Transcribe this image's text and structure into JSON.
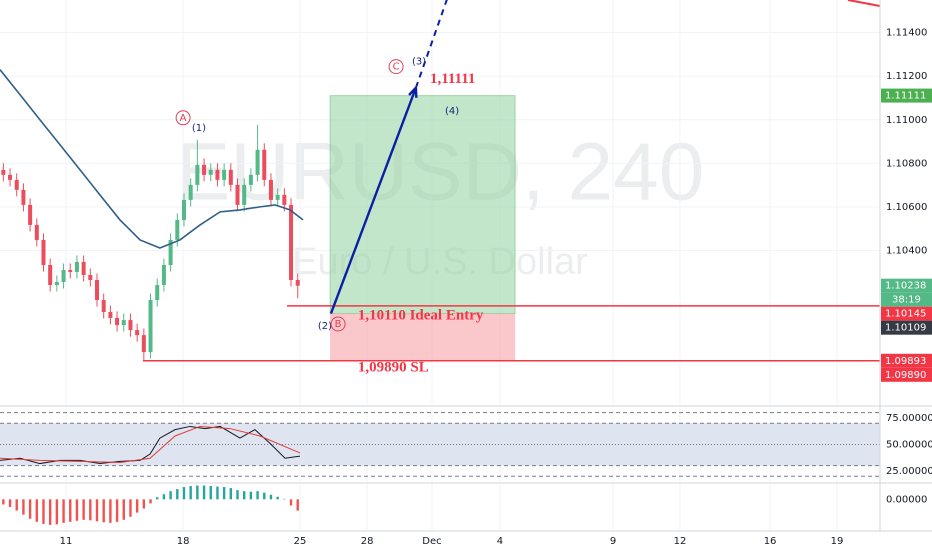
{
  "chart_data": [
    {
      "type": "candlestick",
      "title": "EURUSD, 240",
      "subtitle": "Euro / U.S. Dollar",
      "up_color": "#53b987",
      "down_color": "#eb4d5c",
      "x": [
        0.15,
        0.45,
        0.75,
        1.05,
        1.35,
        1.65,
        1.95,
        2.25,
        2.55,
        2.85,
        3.15,
        3.45,
        3.75,
        4.05,
        4.35,
        4.65,
        4.95,
        5.25,
        5.55,
        5.85,
        6.15,
        6.45,
        6.75,
        7.05,
        7.35,
        7.65,
        7.95,
        8.25,
        8.55,
        8.85,
        9.15,
        9.45,
        9.75,
        10.05,
        10.35,
        10.65,
        10.95,
        11.25,
        11.55,
        11.85,
        12.15,
        12.45,
        12.75,
        13.05,
        13.35
      ],
      "open": [
        1.1077,
        1.10747,
        1.10724,
        1.10678,
        1.10609,
        1.10517,
        1.10448,
        1.10333,
        1.10241,
        1.10255,
        1.1031,
        1.10301,
        1.10347,
        1.10287,
        1.10264,
        1.10172,
        1.10117,
        1.1009,
        1.10057,
        1.1008,
        1.10034,
        1.10011,
        1.09933,
        1.10172,
        1.10241,
        1.10333,
        1.10448,
        1.1054,
        1.10632,
        1.10701,
        1.10793,
        1.10747,
        1.1077,
        1.10724,
        1.1077,
        1.10701,
        1.10609,
        1.10701,
        1.10747,
        1.10862,
        1.10724,
        1.10632,
        1.10655,
        1.10609,
        1.10264
      ],
      "high": [
        1.108,
        1.10777,
        1.10754,
        1.10708,
        1.10639,
        1.10547,
        1.10478,
        1.10363,
        1.10285,
        1.1034,
        1.1034,
        1.10377,
        1.10377,
        1.10317,
        1.10294,
        1.10202,
        1.10147,
        1.1012,
        1.1011,
        1.1011,
        1.10064,
        1.10041,
        1.10202,
        1.10271,
        1.10363,
        1.10478,
        1.1057,
        1.10662,
        1.10731,
        1.10908,
        1.10823,
        1.108,
        1.108,
        1.108,
        1.108,
        1.10731,
        1.10731,
        1.10777,
        1.10977,
        1.10892,
        1.10754,
        1.10685,
        1.10685,
        1.10639,
        1.10294
      ],
      "low": [
        1.10717,
        1.10694,
        1.10648,
        1.10579,
        1.10487,
        1.10418,
        1.10303,
        1.10211,
        1.10211,
        1.10225,
        1.10271,
        1.10271,
        1.10257,
        1.10234,
        1.10142,
        1.10087,
        1.1006,
        1.10027,
        1.10027,
        1.10004,
        1.09981,
        1.09893,
        1.09903,
        1.10142,
        1.10211,
        1.10303,
        1.10418,
        1.1051,
        1.10602,
        1.10671,
        1.10717,
        1.10717,
        1.10694,
        1.10694,
        1.10671,
        1.10579,
        1.10579,
        1.10671,
        1.10717,
        1.10694,
        1.10602,
        1.10602,
        1.10579,
        1.10234,
        1.1018
      ],
      "close": [
        1.10747,
        1.10724,
        1.10678,
        1.10609,
        1.10517,
        1.10448,
        1.10333,
        1.10241,
        1.10255,
        1.1031,
        1.10301,
        1.10347,
        1.10287,
        1.10264,
        1.10172,
        1.10117,
        1.1009,
        1.10057,
        1.1008,
        1.10034,
        1.10011,
        1.09933,
        1.10172,
        1.10241,
        1.10333,
        1.10448,
        1.1054,
        1.10632,
        1.10701,
        1.10793,
        1.10747,
        1.1077,
        1.10724,
        1.1077,
        1.10701,
        1.10609,
        1.10701,
        1.10747,
        1.10862,
        1.10724,
        1.10632,
        1.10655,
        1.10609,
        1.10264,
        1.10238
      ],
      "moving_average": {
        "color": "#2f5f8a",
        "x": [
          0,
          0.9,
          1.79,
          2.69,
          3.59,
          4.48,
          5.38,
          6.28,
          7.17,
          8.07,
          8.97,
          9.87,
          10.76,
          11.66,
          12.33,
          13.0,
          13.59
        ],
        "values": [
          1.1123,
          1.11115,
          1.11,
          1.10885,
          1.1077,
          1.10655,
          1.1054,
          1.10448,
          1.10411,
          1.10448,
          1.10517,
          1.10577,
          1.10586,
          1.106,
          1.10609,
          1.10586,
          1.1054
        ]
      },
      "xlim": [
        0,
        39.46
      ],
      "ylim": [
        1.0969,
        1.1155
      ],
      "xticks": [
        {
          "value": 2.96,
          "label": "11"
        },
        {
          "value": 8.21,
          "label": "18"
        },
        {
          "value": 13.45,
          "label": "25"
        },
        {
          "value": 16.46,
          "label": "28"
        },
        {
          "value": 19.37,
          "label": "Dec"
        },
        {
          "value": 22.42,
          "label": "4"
        },
        {
          "value": 27.49,
          "label": "9"
        },
        {
          "value": 30.49,
          "label": "12"
        },
        {
          "value": 34.53,
          "label": "16"
        },
        {
          "value": 37.53,
          "label": "19"
        }
      ],
      "yticks": [
        {
          "value": 1.114,
          "label": "1.11400"
        },
        {
          "value": 1.112,
          "label": "1.11200"
        },
        {
          "value": 1.11,
          "label": "1.11000"
        },
        {
          "value": 1.108,
          "label": "1.10800"
        },
        {
          "value": 1.106,
          "label": "1.10600"
        },
        {
          "value": 1.104,
          "label": "1.10400"
        }
      ],
      "grid": true,
      "position": {
        "x": [
          14.8,
          23.1
        ],
        "target": 1.11111,
        "entry": 1.1011,
        "stop": 1.0989,
        "profit_color": "#8fd19e",
        "loss_color": "#f7a1a8"
      },
      "levels": [
        {
          "value": 1.10145,
          "x": 12.87,
          "color": "#f23645"
        },
        {
          "value": 1.09893,
          "x": 6.41,
          "color": "#f23645"
        }
      ],
      "arrow": {
        "color": "#0d1fa3",
        "x": [
          14.84,
          18.65,
          20.04
        ],
        "y": [
          1.1011,
          1.11147,
          1.11552
        ]
      },
      "annotations": [
        {
          "text": "A",
          "x": 8.21,
          "y": 1.11009,
          "color": "#e0405a",
          "circled": true
        },
        {
          "text": "(1)",
          "x": 8.92,
          "y": 1.10963,
          "color": "#1a237e"
        },
        {
          "text": "C",
          "x": 17.76,
          "y": 1.11244,
          "color": "#e0405a",
          "circled": true
        },
        {
          "text": "(3)",
          "x": 18.79,
          "y": 1.11267,
          "color": "#1a237e"
        },
        {
          "text": "(4)",
          "x": 20.27,
          "y": 1.11041,
          "color": "#1a237e"
        },
        {
          "text": "(2)",
          "x": 14.57,
          "y": 1.10053,
          "color": "#1a237e"
        },
        {
          "text": "B",
          "x": 15.16,
          "y": 1.10062,
          "color": "#e0405a",
          "circled": true
        },
        {
          "text": "1,11111",
          "x": 19.28,
          "y": 1.11184,
          "color": "#f23645",
          "big": true
        },
        {
          "text": "1,10110 Ideal Entry",
          "x": 16.05,
          "y": 1.10099,
          "color": "#f23645",
          "big": true
        },
        {
          "text": "1,09890 SL",
          "x": 16.05,
          "y": 1.0986,
          "color": "#f23645",
          "big": true
        }
      ],
      "price_labels": [
        {
          "value": 1.11111,
          "label": "1.11111",
          "color": "#4caf50"
        },
        {
          "value": 1.10238,
          "label": "1.10238",
          "color": "#53b987",
          "countdown": "38:19"
        },
        {
          "value": 1.10145,
          "label": "1.10145",
          "color": "#f23645"
        },
        {
          "value": 1.10109,
          "label": "1.10109",
          "color": "#363a45"
        },
        {
          "value": 1.09893,
          "label": "1.09893",
          "color": "#f23645"
        },
        {
          "value": 1.0989,
          "label": "1.09890",
          "color": "#f23645"
        }
      ]
    },
    {
      "type": "line",
      "ylim": [
        14.6,
        84.4
      ],
      "yticks": [
        {
          "value": 75,
          "label": "75.00000"
        },
        {
          "value": 50,
          "label": "50.00000"
        },
        {
          "value": 25,
          "label": "25.00000"
        }
      ],
      "levels": [
        80,
        70,
        50,
        30,
        20
      ],
      "band": [
        30,
        70
      ],
      "band_color": "#dfe4f1",
      "series": [
        {
          "color": "#131722",
          "x": [
            0,
            0.9,
            1.79,
            2.69,
            3.59,
            4.48,
            5.38,
            6.28,
            6.73,
            7.17,
            7.85,
            8.52,
            9.19,
            9.87,
            10.76,
            11.43,
            12.11,
            12.78,
            13.45
          ],
          "values": [
            35,
            37,
            32,
            35,
            35,
            32,
            34,
            35,
            41,
            56,
            64,
            67,
            65,
            67,
            56,
            64,
            51,
            37,
            39
          ]
        },
        {
          "color": "#e53935",
          "x": [
            0,
            1.79,
            3.59,
            5.38,
            6.73,
            7.85,
            8.97,
            10.31,
            11.66,
            13.0,
            13.45
          ],
          "values": [
            37,
            35,
            34,
            33,
            37,
            58,
            67,
            65,
            58,
            46,
            42
          ]
        }
      ]
    },
    {
      "type": "bar",
      "ylim": [
        -0.0006,
        0.0003
      ],
      "yticks": [
        {
          "value": 0,
          "label": "0.00000"
        }
      ],
      "up_color": "#26a69a",
      "down_color": "#ef5350",
      "values": [
        -0.0001,
        -0.00015,
        -0.00022,
        -0.0003,
        -0.00038,
        -0.00044,
        -0.00048,
        -0.0005,
        -0.00049,
        -0.00046,
        -0.00044,
        -0.00042,
        -0.0004,
        -0.00041,
        -0.00043,
        -0.00045,
        -0.00046,
        -0.00044,
        -0.0004,
        -0.00034,
        -0.00026,
        -0.00018,
        -8e-05,
        4e-05,
        0.0001,
        0.00016,
        0.0002,
        0.00024,
        0.00026,
        0.00027,
        0.00027,
        0.00026,
        0.00025,
        0.00024,
        0.00022,
        0.00018,
        0.00016,
        0.00015,
        0.00016,
        0.00013,
        9e-05,
        5e-05,
        1e-05,
        -0.00012,
        -0.00022
      ]
    }
  ]
}
